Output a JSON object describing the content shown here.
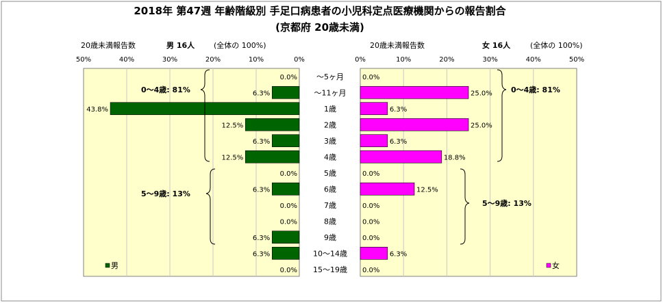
{
  "title_line1": "2018年 第47週 年齢階級別 手足口病患者の小児科定点医療機関からの報告割合",
  "title_line2": "(京都府 20歳未満)",
  "chart_data": {
    "type": "bar",
    "orientation": "horizontal-butterfly",
    "categories": [
      "～5ヶ月",
      "～11ヶ月",
      "1歳",
      "2歳",
      "3歳",
      "4歳",
      "5歳",
      "6歳",
      "7歳",
      "8歳",
      "9歳",
      "10～14歳",
      "15～19歳"
    ],
    "series": [
      {
        "name": "男",
        "color": "#006400",
        "header_prefix": "20歳未満報告数",
        "header_sex": "男 16人",
        "header_total": "(全体の 100%)",
        "values": [
          0.0,
          6.3,
          43.8,
          12.5,
          6.3,
          12.5,
          0.0,
          6.3,
          0.0,
          0.0,
          6.3,
          6.3,
          0.0
        ],
        "labels": [
          "0.0%",
          "6.3%",
          "43.8%",
          "12.5%",
          "6.3%",
          "12.5%",
          "0.0%",
          "6.3%",
          "0.0%",
          "0.0%",
          "6.3%",
          "6.3%",
          "0.0%"
        ],
        "group_labels": [
          "0～4歳: 81%",
          "5～9歳: 13%"
        ]
      },
      {
        "name": "女",
        "color": "#ff00ff",
        "header_prefix": "20歳未満報告数",
        "header_sex": "女 16人",
        "header_total": "(全体の 100%)",
        "values": [
          0.0,
          25.0,
          6.3,
          25.0,
          6.3,
          18.8,
          0.0,
          12.5,
          0.0,
          0.0,
          0.0,
          6.3,
          0.0
        ],
        "labels": [
          "0.0%",
          "25.0%",
          "6.3%",
          "25.0%",
          "6.3%",
          "18.8%",
          "0.0%",
          "12.5%",
          "0.0%",
          "0.0%",
          "0.0%",
          "6.3%",
          "0.0%"
        ],
        "group_labels": [
          "0～4歳: 81%",
          "5～9歳: 13%"
        ]
      }
    ],
    "xlim": [
      0,
      50
    ],
    "x_ticks_left": [
      "50%",
      "40%",
      "30%",
      "20%",
      "10%",
      "0%"
    ],
    "x_ticks_right": [
      "0%",
      "10%",
      "20%",
      "30%",
      "40%",
      "50%"
    ],
    "plot_background": "#ffffcc",
    "legend": "bottom-inside"
  }
}
